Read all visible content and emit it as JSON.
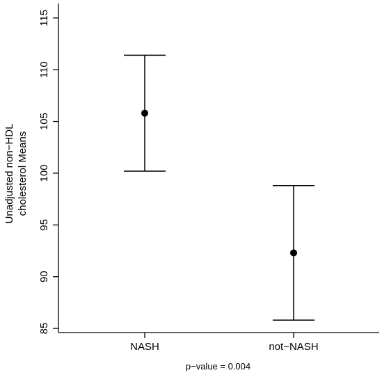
{
  "chart_data": {
    "type": "errorbar",
    "categories": [
      "NASH",
      "not−NASH"
    ],
    "series": [
      {
        "values": [
          105.8,
          92.3
        ],
        "lower": [
          100.2,
          85.8
        ],
        "upper": [
          111.4,
          98.8
        ]
      }
    ],
    "ylabel_line1": "Unadjusted non−HDL",
    "ylabel_line2": "cholesterol Means",
    "xlabel": "",
    "yticks": [
      85,
      90,
      95,
      100,
      105,
      110,
      115
    ],
    "ylim": [
      84.6,
      116.4
    ],
    "grid": false,
    "note": "p−value = 0.004"
  }
}
